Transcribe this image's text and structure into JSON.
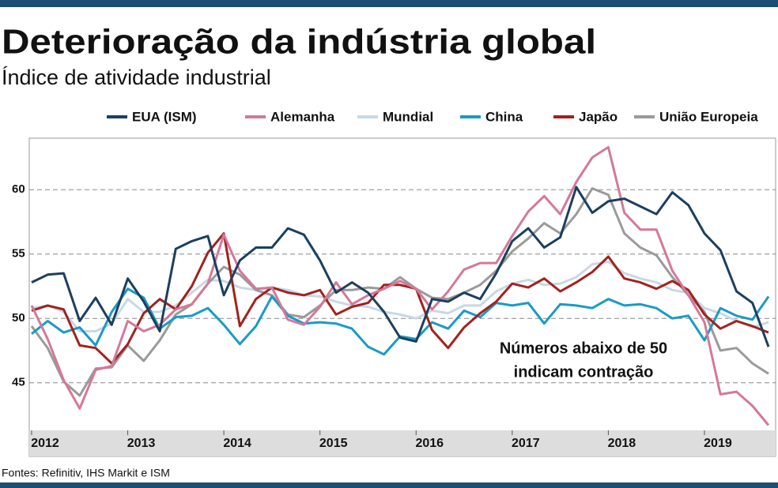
{
  "chart_data": {
    "type": "line",
    "title": "Deterioração da indústria global",
    "subtitle": "Índice de atividade industrial",
    "annotation": [
      "Números abaixo de 50",
      "indicam contração"
    ],
    "source": "Fontes: Refinitiv, IHS Markit e ISM",
    "categories": [
      "2012",
      null,
      null,
      null,
      null,
      null,
      "2013",
      null,
      null,
      null,
      null,
      null,
      "2014",
      null,
      null,
      null,
      null,
      null,
      "2015",
      null,
      null,
      null,
      null,
      null,
      "2016",
      null,
      null,
      null,
      null,
      null,
      "2017",
      null,
      null,
      null,
      null,
      null,
      "2018",
      null,
      null,
      null,
      null,
      null,
      "2019",
      null,
      null,
      null,
      null
    ],
    "ylim": [
      41.3,
      64
    ],
    "yticks": [
      45,
      50,
      55,
      60
    ],
    "grid": true,
    "series": [
      {
        "name": "EUA (ISM)",
        "color": "#1c3f5e",
        "values": [
          52.8,
          53.4,
          53.5,
          49.8,
          51.6,
          49.5,
          53.1,
          51.3,
          49.0,
          55.4,
          56.0,
          56.4,
          51.8,
          54.5,
          55.5,
          55.5,
          57.0,
          56.5,
          54.5,
          52.0,
          52.8,
          52.0,
          50.5,
          48.5,
          48.2,
          51.5,
          51.3,
          52.0,
          51.5,
          53.5,
          56.0,
          57.0,
          55.5,
          56.3,
          60.2,
          58.2,
          59.1,
          59.3,
          58.7,
          58.1,
          59.8,
          58.8,
          56.6,
          55.3,
          52.1,
          51.2,
          47.8
        ]
      },
      {
        "name": "Alemanha",
        "color": "#d4789a",
        "values": [
          51.0,
          48.4,
          45.2,
          43.0,
          46.0,
          46.3,
          49.8,
          49.0,
          49.5,
          50.7,
          51.1,
          52.7,
          56.5,
          53.7,
          52.3,
          52.4,
          49.9,
          49.5,
          50.9,
          52.8,
          51.1,
          51.8,
          52.3,
          52.9,
          52.3,
          50.7,
          52.1,
          53.8,
          54.3,
          54.3,
          56.4,
          58.3,
          59.5,
          58.1,
          60.6,
          62.5,
          63.3,
          58.2,
          56.9,
          56.9,
          53.7,
          51.8,
          49.7,
          44.1,
          44.3,
          43.2,
          41.7
        ]
      },
      {
        "name": "Mundial",
        "color": "#c8d8e6",
        "values": [
          50.8,
          51.0,
          50.5,
          49.0,
          49.0,
          49.6,
          51.5,
          50.5,
          50.5,
          51.0,
          52.0,
          53.0,
          52.9,
          52.4,
          52.2,
          52.4,
          52.2,
          51.8,
          51.7,
          51.3,
          51.0,
          50.9,
          50.5,
          50.3,
          50.0,
          50.6,
          50.4,
          51.0,
          51.0,
          52.1,
          52.7,
          53.0,
          52.6,
          52.7,
          53.2,
          54.2,
          54.4,
          53.5,
          53.1,
          52.8,
          52.2,
          52.0,
          50.8,
          50.4,
          49.8,
          49.3,
          49.7
        ]
      },
      {
        "name": "China",
        "color": "#1a9bc4",
        "values": [
          48.8,
          49.8,
          48.9,
          49.3,
          47.9,
          50.5,
          52.3,
          51.6,
          49.2,
          50.1,
          50.2,
          50.8,
          49.5,
          48.0,
          49.4,
          51.7,
          50.2,
          49.6,
          49.7,
          49.6,
          49.2,
          47.8,
          47.2,
          48.6,
          48.4,
          49.7,
          49.2,
          50.6,
          50.1,
          51.2,
          51.0,
          51.2,
          49.6,
          51.1,
          51.0,
          50.8,
          51.5,
          51.0,
          51.1,
          50.8,
          50.0,
          50.2,
          48.3,
          50.8,
          50.2,
          49.9,
          51.7
        ]
      },
      {
        "name": "Japão",
        "color": "#a0221e",
        "values": [
          50.6,
          51.0,
          50.7,
          47.9,
          47.7,
          46.5,
          48.0,
          50.4,
          51.5,
          50.7,
          52.5,
          55.1,
          56.6,
          49.4,
          51.5,
          52.4,
          52.0,
          51.8,
          52.2,
          50.3,
          50.9,
          51.2,
          52.6,
          52.6,
          52.3,
          49.1,
          47.7,
          49.3,
          50.4,
          51.3,
          52.7,
          52.4,
          53.1,
          52.1,
          52.8,
          53.6,
          54.8,
          53.1,
          52.8,
          52.3,
          52.9,
          52.2,
          50.3,
          49.2,
          49.8,
          49.4,
          48.9
        ]
      },
      {
        "name": "União Europeia",
        "color": "#9a9a9a",
        "values": [
          49.4,
          47.7,
          45.1,
          44.0,
          46.1,
          46.2,
          47.9,
          46.7,
          48.3,
          50.3,
          51.1,
          52.7,
          54.0,
          53.4,
          52.2,
          51.8,
          50.3,
          50.1,
          51.0,
          52.2,
          52.2,
          52.4,
          52.3,
          53.2,
          52.3,
          51.6,
          51.5,
          52.0,
          52.6,
          53.7,
          55.2,
          56.2,
          57.4,
          56.6,
          58.1,
          60.1,
          59.6,
          56.6,
          55.5,
          54.9,
          53.2,
          51.8,
          50.5,
          47.5,
          47.7,
          46.5,
          45.7
        ]
      }
    ]
  }
}
